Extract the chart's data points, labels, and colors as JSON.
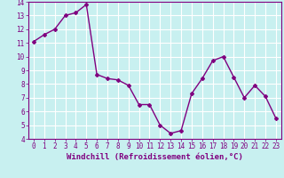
{
  "x": [
    0,
    1,
    2,
    3,
    4,
    5,
    6,
    7,
    8,
    9,
    10,
    11,
    12,
    13,
    14,
    15,
    16,
    17,
    18,
    19,
    20,
    21,
    22,
    23
  ],
  "y": [
    11.1,
    11.6,
    12.0,
    13.0,
    13.2,
    13.8,
    8.7,
    8.4,
    8.3,
    7.9,
    6.5,
    6.5,
    5.0,
    4.4,
    4.6,
    7.3,
    8.4,
    9.7,
    10.0,
    8.5,
    7.0,
    7.9,
    7.1,
    5.5
  ],
  "line_color": "#800080",
  "marker": "D",
  "marker_size": 2,
  "bg_color": "#c8f0f0",
  "grid_color": "#ffffff",
  "xlabel": "Windchill (Refroidissement éolien,°C)",
  "xlim": [
    -0.5,
    23.5
  ],
  "ylim": [
    4,
    14
  ],
  "yticks": [
    4,
    5,
    6,
    7,
    8,
    9,
    10,
    11,
    12,
    13,
    14
  ],
  "xticks": [
    0,
    1,
    2,
    3,
    4,
    5,
    6,
    7,
    8,
    9,
    10,
    11,
    12,
    13,
    14,
    15,
    16,
    17,
    18,
    19,
    20,
    21,
    22,
    23
  ],
  "tick_label_fontsize": 5.5,
  "xlabel_fontsize": 6.5,
  "line_width": 1.0
}
